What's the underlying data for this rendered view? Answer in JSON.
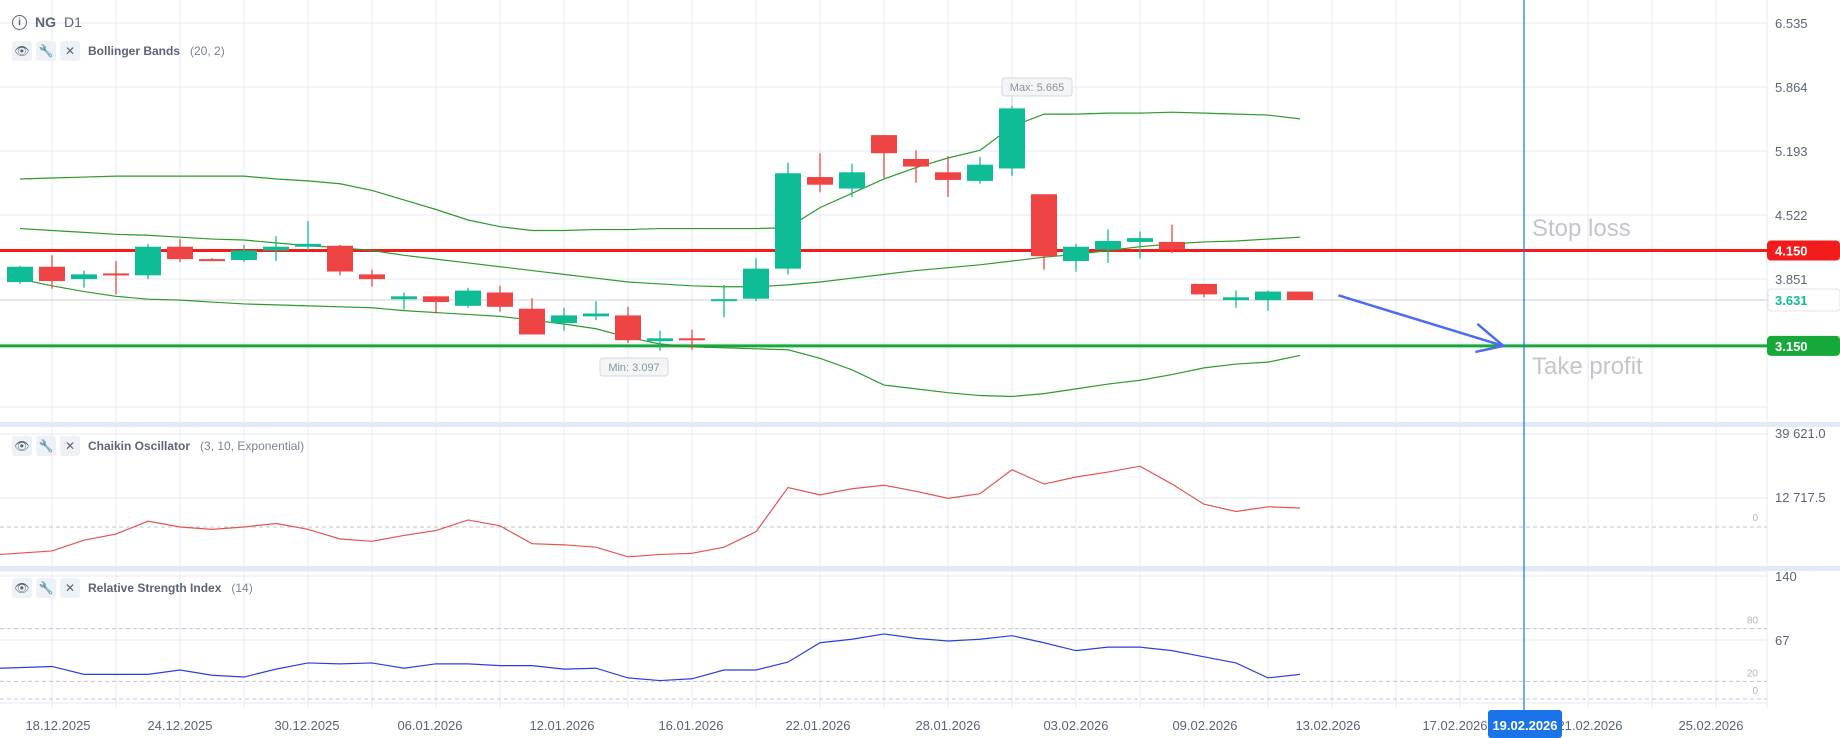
{
  "header": {
    "symbol": "NG",
    "timeframe": "D1",
    "info_icon": "info-icon"
  },
  "indicators": [
    {
      "name": "Bollinger Bands",
      "params": "(20, 2)"
    },
    {
      "name": "Chaikin Oscillator",
      "params": "(3, 10, Exponential)"
    },
    {
      "name": "Relative Strength Index",
      "params": "(14)"
    }
  ],
  "colors": {
    "up": "#0ebd95",
    "down": "#ef4444",
    "bands": "#2e9a2e",
    "stop_loss": "#f21c1c",
    "take_profit": "#17a83a",
    "chaikin": "#e35454",
    "rsi": "#2b3fe0",
    "crosshair": "#1a73e8",
    "arrow": "#4a6cf0"
  },
  "chart_data": [
    {
      "type": "candlestick",
      "title": "NG D1",
      "price_axis_ticks": [
        "6.535",
        "5.864",
        "5.193",
        "4.522",
        "3.851"
      ],
      "ylim": [
        2.45,
        6.76
      ],
      "date_labels": [
        "18.12.2025",
        "24.12.2025",
        "30.12.2025",
        "06.01.2026",
        "12.01.2026",
        "16.01.2026",
        "22.01.2026",
        "28.01.2026",
        "03.02.2026",
        "09.02.2026",
        "13.02.2026",
        "17.02.2026",
        "21.02.2026",
        "25.02.2026"
      ],
      "crosshair_date": "19.02.2026",
      "candles": [
        [
          3.82,
          3.99,
          3.8,
          3.98
        ],
        [
          3.98,
          4.1,
          3.75,
          3.83
        ],
        [
          3.85,
          3.94,
          3.76,
          3.9
        ],
        [
          3.91,
          4.04,
          3.69,
          3.9
        ],
        [
          3.89,
          4.22,
          3.85,
          4.19
        ],
        [
          4.19,
          4.27,
          4.03,
          4.06
        ],
        [
          4.06,
          4.07,
          4.05,
          4.05
        ],
        [
          4.05,
          4.21,
          4.03,
          4.15
        ],
        [
          4.15,
          4.3,
          4.04,
          4.19
        ],
        [
          4.19,
          4.46,
          4.15,
          4.22
        ],
        [
          4.2,
          4.21,
          3.89,
          3.93
        ],
        [
          3.9,
          3.95,
          3.77,
          3.85
        ],
        [
          3.64,
          3.71,
          3.53,
          3.67
        ],
        [
          3.67,
          3.67,
          3.49,
          3.61
        ],
        [
          3.57,
          3.76,
          3.55,
          3.73
        ],
        [
          3.71,
          3.78,
          3.51,
          3.56
        ],
        [
          3.54,
          3.65,
          3.27,
          3.27
        ],
        [
          3.39,
          3.55,
          3.31,
          3.47
        ],
        [
          3.46,
          3.62,
          3.42,
          3.49
        ],
        [
          3.47,
          3.56,
          3.18,
          3.21
        ],
        [
          3.2,
          3.31,
          3.1,
          3.23
        ],
        [
          3.23,
          3.32,
          3.11,
          3.21
        ],
        [
          3.63,
          3.79,
          3.45,
          3.64
        ],
        [
          3.645,
          4.07,
          3.62,
          3.96
        ],
        [
          3.96,
          5.07,
          3.9,
          4.96
        ],
        [
          4.92,
          5.17,
          4.76,
          4.84
        ],
        [
          4.8,
          5.06,
          4.71,
          4.97
        ],
        [
          5.36,
          5.36,
          4.91,
          5.17
        ],
        [
          5.11,
          5.2,
          4.86,
          5.03
        ],
        [
          4.97,
          5.14,
          4.71,
          4.89
        ],
        [
          4.88,
          5.13,
          4.85,
          5.05
        ],
        [
          5.01,
          5.665,
          4.93,
          5.64
        ],
        [
          4.74,
          4.74,
          3.95,
          4.09
        ],
        [
          4.04,
          4.22,
          3.93,
          4.19
        ],
        [
          4.16,
          4.37,
          4.02,
          4.25
        ],
        [
          4.24,
          4.35,
          4.07,
          4.28
        ],
        [
          4.24,
          4.42,
          4.12,
          4.16
        ],
        [
          3.8,
          3.8,
          3.66,
          3.69
        ],
        [
          3.63,
          3.73,
          3.55,
          3.66
        ],
        [
          3.63,
          3.73,
          3.52,
          3.72
        ],
        [
          3.72,
          3.72,
          3.63,
          3.631
        ]
      ],
      "candle_format": [
        "open",
        "high",
        "low",
        "close"
      ],
      "bollinger": {
        "upper": [
          4.9,
          4.91,
          4.92,
          4.93,
          4.93,
          4.93,
          4.93,
          4.93,
          4.9,
          4.88,
          4.85,
          4.78,
          4.68,
          4.58,
          4.47,
          4.4,
          4.36,
          4.36,
          4.37,
          4.37,
          4.38,
          4.38,
          4.38,
          4.38,
          4.39,
          4.6,
          4.75,
          4.9,
          5.02,
          5.12,
          5.2,
          5.45,
          5.58,
          5.58,
          5.59,
          5.59,
          5.6,
          5.59,
          5.58,
          5.57,
          5.53
        ],
        "middle": [
          4.38,
          4.36,
          4.34,
          4.32,
          4.31,
          4.29,
          4.27,
          4.26,
          4.23,
          4.2,
          4.18,
          4.15,
          4.1,
          4.06,
          4.02,
          3.98,
          3.94,
          3.9,
          3.86,
          3.82,
          3.8,
          3.78,
          3.77,
          3.77,
          3.79,
          3.82,
          3.86,
          3.9,
          3.94,
          3.97,
          4.0,
          4.04,
          4.08,
          4.11,
          4.15,
          4.19,
          4.22,
          4.24,
          4.25,
          4.27,
          4.29
        ],
        "lower": [
          3.85,
          3.78,
          3.72,
          3.67,
          3.64,
          3.63,
          3.61,
          3.59,
          3.58,
          3.57,
          3.56,
          3.55,
          3.52,
          3.5,
          3.48,
          3.46,
          3.42,
          3.38,
          3.33,
          3.24,
          3.17,
          3.14,
          3.13,
          3.12,
          3.11,
          3.02,
          2.9,
          2.74,
          2.7,
          2.66,
          2.63,
          2.62,
          2.65,
          2.7,
          2.75,
          2.79,
          2.85,
          2.92,
          2.96,
          2.98,
          3.05
        ]
      },
      "max_label": "Max: 5.665",
      "min_label": "Min: 3.097",
      "max_index": 31,
      "max_value": 5.665,
      "min_index": 20,
      "min_value": 3.097,
      "current_price": {
        "label": "3.631",
        "value": 3.631
      },
      "stop_loss": {
        "label": "Stop loss",
        "value": 4.15,
        "badge": "4.150"
      },
      "take_profit": {
        "label": "Take profit",
        "value": 3.15,
        "badge": "3.150"
      },
      "arrow": {
        "from_index": 41.2,
        "from_value": 3.68,
        "to_index": 47.2,
        "to_value": 3.15
      }
    },
    {
      "type": "line",
      "title": "Chaikin Oscillator",
      "axis_ticks": [
        "39 621.0",
        "12 717.5"
      ],
      "zero_label": "0",
      "ylim": [
        -16500,
        42000
      ],
      "values": [
        -11700,
        -10200,
        -5600,
        -3000,
        2500,
        0,
        -1000,
        0,
        1500,
        -1000,
        -5100,
        -6100,
        -3600,
        -1500,
        3000,
        500,
        -7100,
        -7600,
        -8600,
        -12700,
        -11700,
        -11200,
        -8600,
        -2000,
        16800,
        13700,
        16300,
        17800,
        15200,
        12200,
        14200,
        24400,
        18300,
        21300,
        23400,
        25900,
        18300,
        9700,
        6600,
        8600,
        8100
      ]
    },
    {
      "type": "line",
      "title": "Relative Strength Index",
      "axis_ticks": [
        "140",
        "67"
      ],
      "levels": [
        "80",
        "20",
        "0"
      ],
      "ylim": [
        -5,
        145
      ],
      "values": [
        35,
        37,
        28,
        28,
        28,
        33,
        27,
        25,
        34,
        41,
        40,
        41,
        35,
        40,
        40,
        38,
        38,
        34,
        35,
        24,
        21,
        23,
        33,
        33,
        42,
        64,
        68,
        74,
        69,
        66,
        68,
        72,
        64,
        55,
        59,
        59,
        55,
        48,
        41,
        24,
        28
      ]
    }
  ]
}
